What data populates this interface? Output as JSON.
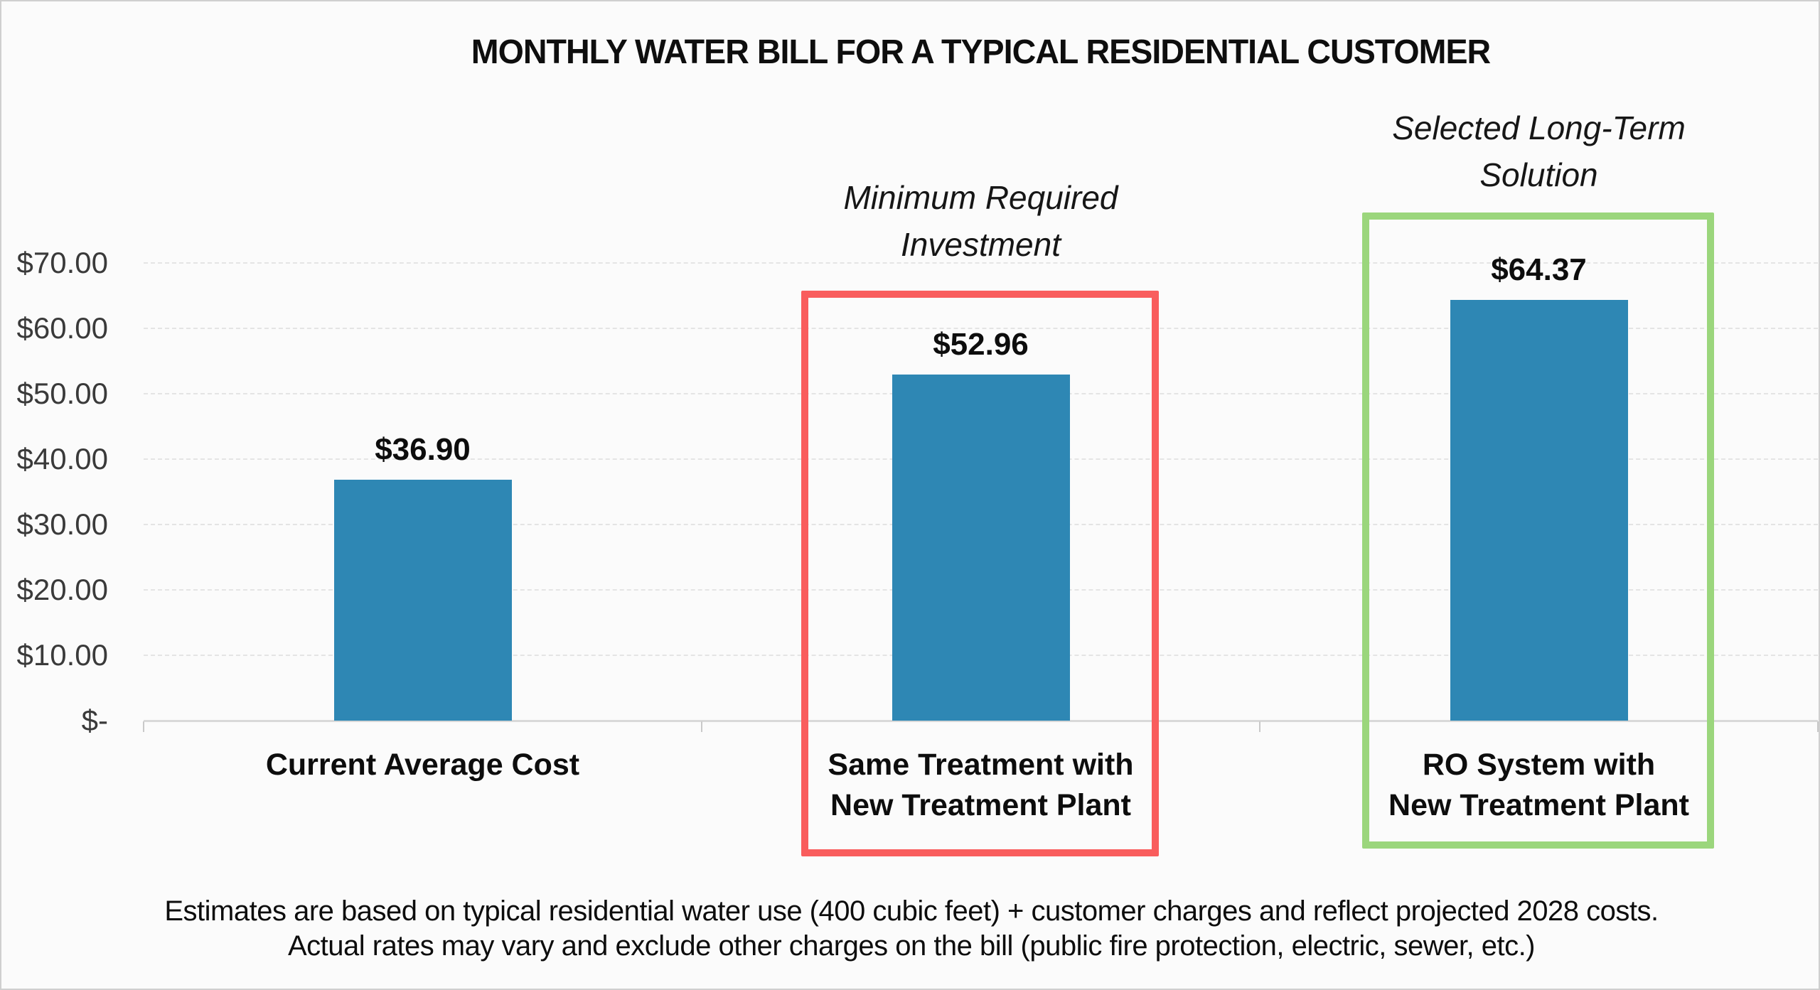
{
  "page": {
    "background": "#FBFBFB",
    "border_color": "#CFCFCF"
  },
  "chart_data": {
    "type": "bar",
    "title": "MONTHLY WATER BILL FOR A TYPICAL RESIDENTIAL CUSTOMER",
    "categories": [
      "Current Average Cost",
      "Same Treatment with\nNew Treatment Plant",
      "RO System with\nNew Treatment Plant"
    ],
    "values": [
      36.9,
      52.96,
      64.37
    ],
    "value_labels": [
      "$36.90",
      "$52.96",
      "$64.37"
    ],
    "bar_color": "#2E87B4",
    "xlabel": "",
    "ylabel": "",
    "ylim": [
      0,
      78
    ],
    "legend": "none",
    "grid": "horizontal-dashed",
    "y_axis": {
      "ticks": [
        {
          "label": "$70.00",
          "value": 70
        },
        {
          "label": "$60.00",
          "value": 60
        },
        {
          "label": "$50.00",
          "value": 50
        },
        {
          "label": "$40.00",
          "value": 40
        },
        {
          "label": "$30.00",
          "value": 30
        },
        {
          "label": "$20.00",
          "value": 20
        },
        {
          "label": "$10.00",
          "value": 10
        },
        {
          "label": "$-",
          "value": 0
        }
      ]
    },
    "annotations": [
      {
        "caption": "Minimum Required\nInvestment",
        "category_index": 1,
        "box_color": "#F95D5D"
      },
      {
        "caption": "Selected Long-Term\nSolution",
        "category_index": 2,
        "box_color": "#9BD67C"
      }
    ],
    "footnote_lines": [
      "Estimates are based on typical residential water use (400 cubic feet) + customer charges and reflect projected 2028 costs.",
      "Actual rates may vary and exclude other charges on the bill (public fire protection, electric, sewer, etc.)"
    ]
  }
}
